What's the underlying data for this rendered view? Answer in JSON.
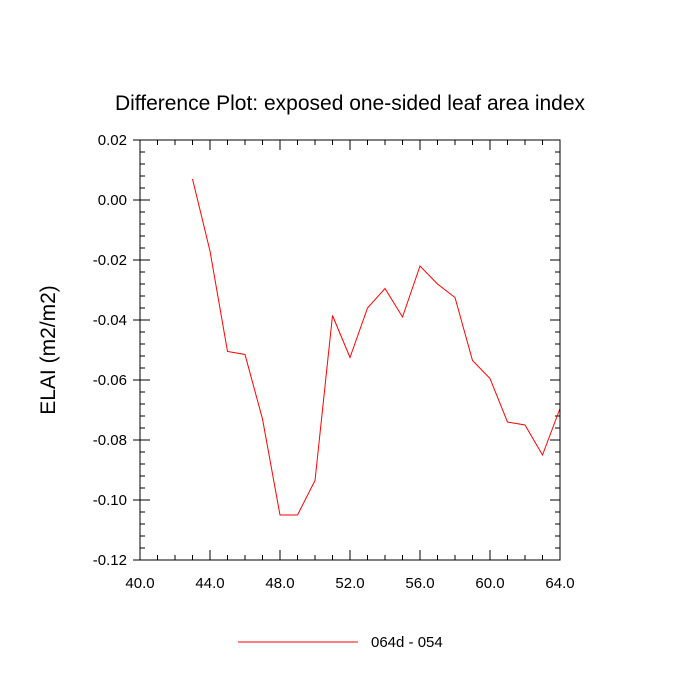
{
  "chart_data": {
    "type": "line",
    "title": "Difference Plot: exposed one-sided leaf area index",
    "xlabel": "",
    "ylabel": "ELAI  (m2/m2)",
    "xlim": [
      40,
      64
    ],
    "ylim": [
      -0.12,
      0.02
    ],
    "x_ticks": [
      40,
      44,
      48,
      52,
      56,
      60,
      64
    ],
    "x_tick_labels": [
      "40.0",
      "44.0",
      "48.0",
      "52.0",
      "56.0",
      "60.0",
      "64.0"
    ],
    "x_minor_step": 1,
    "y_ticks": [
      -0.12,
      -0.1,
      -0.08,
      -0.06,
      -0.04,
      -0.02,
      0.0,
      0.02
    ],
    "y_tick_labels": [
      "-0.12",
      "-0.10",
      "-0.08",
      "-0.06",
      "-0.04",
      "-0.02",
      "0.00",
      "0.02"
    ],
    "y_minor_step": 0.004,
    "grid": false,
    "legend_position": "bottom-center",
    "series": [
      {
        "name": "064d - 054",
        "color": "#ff0000",
        "x": [
          43,
          44,
          45,
          46,
          47,
          48,
          49,
          50,
          51,
          52,
          53,
          54,
          55,
          56,
          57,
          58,
          59,
          60,
          61,
          62,
          63,
          64
        ],
        "y": [
          0.007,
          -0.017,
          -0.0505,
          -0.0515,
          -0.073,
          -0.105,
          -0.105,
          -0.0935,
          -0.0385,
          -0.0525,
          -0.036,
          -0.0295,
          -0.039,
          -0.022,
          -0.028,
          -0.0325,
          -0.0535,
          -0.0595,
          -0.074,
          -0.075,
          -0.085,
          -0.0695
        ]
      }
    ]
  }
}
